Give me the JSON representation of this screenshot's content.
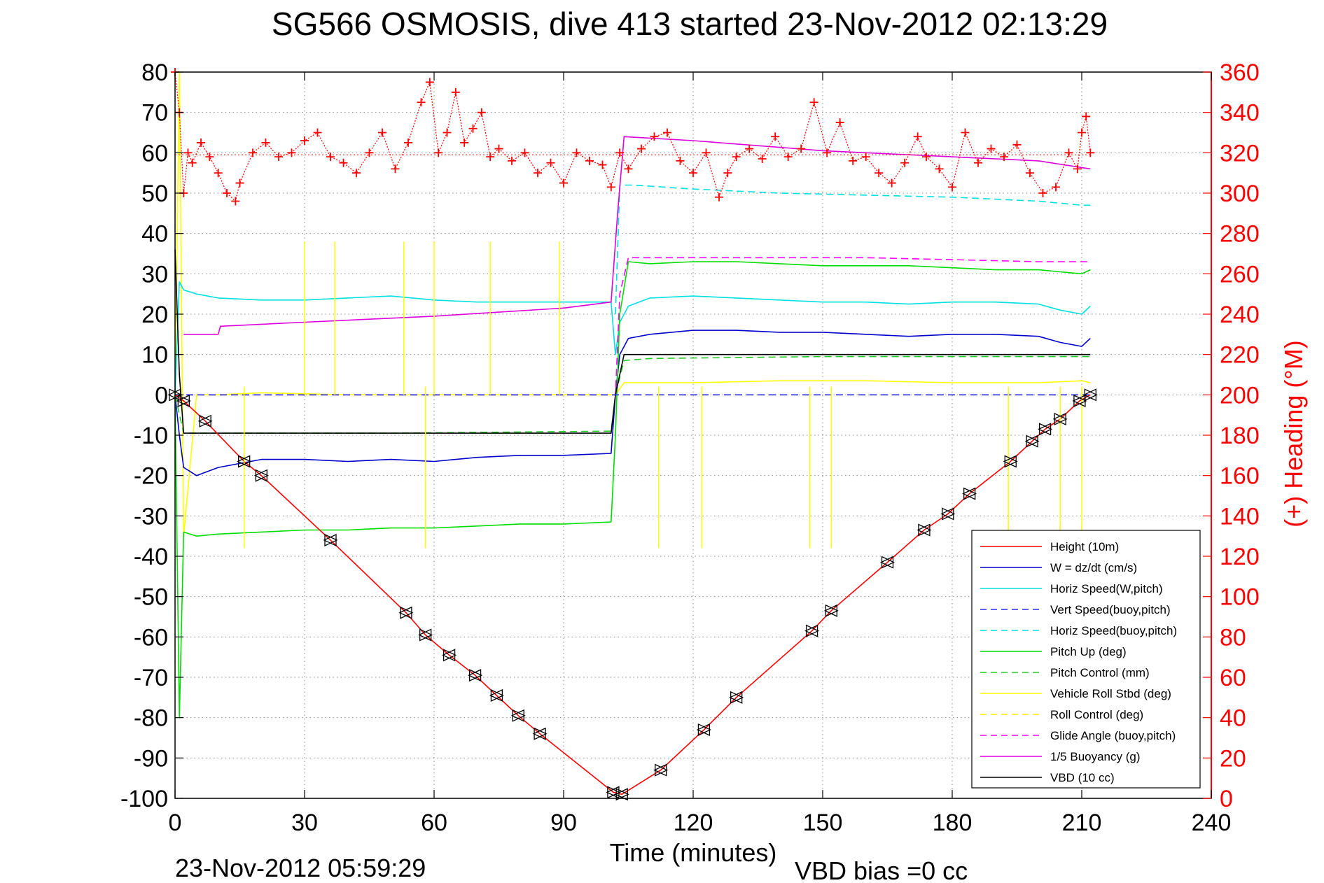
{
  "chart_data": {
    "type": "line",
    "title": "SG566 OSMOSIS, dive 413 started 23-Nov-2012 02:13:29",
    "xlabel": "Time (minutes)",
    "ylabel": "",
    "y2label": "(+) Heading (°M)",
    "xlim": [
      0,
      240
    ],
    "ylim": [
      -100,
      80
    ],
    "y2lim": [
      0,
      360
    ],
    "xticks": [
      "0",
      "30",
      "60",
      "90",
      "120",
      "150",
      "180",
      "210",
      "240"
    ],
    "yticks": [
      "80",
      "70",
      "60",
      "50",
      "40",
      "30",
      "20",
      "10",
      "0",
      "-10",
      "-20",
      "-30",
      "-40",
      "-50",
      "-60",
      "-70",
      "-80",
      "-90",
      "-100"
    ],
    "y2ticks": [
      "360",
      "340",
      "320",
      "300",
      "280",
      "260",
      "240",
      "220",
      "200",
      "180",
      "160",
      "140",
      "120",
      "100",
      "80",
      "60",
      "40",
      "20",
      "0"
    ],
    "grid": true,
    "legend_position": "bottom-right",
    "footer_left": "23-Nov-2012 05:59:29",
    "footer_right": "VBD bias =0 cc",
    "series": [
      {
        "name": "Height (10m)",
        "color": "#ff0000",
        "style": "solid",
        "marker": "triangle",
        "x": [
          0,
          2,
          7,
          16,
          20,
          36,
          53.5,
          58,
          63.5,
          69.5,
          74.5,
          79.5,
          84.5,
          101.5,
          103.5,
          112.5,
          122.5,
          130,
          147.5,
          152,
          165,
          173.5,
          179,
          184,
          193.5,
          198.5,
          201.5,
          205,
          209.5,
          212
        ],
        "y": [
          0,
          -1.5,
          -6.5,
          -16.5,
          -20,
          -36,
          -54,
          -59.5,
          -64.5,
          -69.5,
          -74.5,
          -79.5,
          -84,
          -98.5,
          -99,
          -93,
          -83,
          -75,
          -58.5,
          -53.5,
          -41.5,
          -33.5,
          -29.5,
          -24.5,
          -16.5,
          -11.5,
          -8.5,
          -6,
          -1.5,
          0
        ]
      },
      {
        "name": "W = dz/dt (cm/s)",
        "color": "#0000cc",
        "style": "solid",
        "x": [
          0,
          1,
          2,
          5,
          10,
          20,
          30,
          40,
          50,
          60,
          70,
          80,
          90,
          101,
          102,
          103,
          105,
          110,
          120,
          130,
          140,
          150,
          160,
          170,
          180,
          190,
          200,
          205,
          210,
          212
        ],
        "y": [
          0,
          -10,
          -18,
          -20,
          -18,
          -16,
          -16,
          -16.5,
          -16,
          -16.5,
          -15.5,
          -15,
          -15,
          -14.5,
          0,
          10,
          14,
          15,
          16,
          16,
          15.5,
          15.5,
          15,
          14.5,
          15,
          15,
          14.5,
          13,
          12,
          14
        ]
      },
      {
        "name": "Horiz Speed(W,pitch)",
        "color": "#00e0e0",
        "style": "solid",
        "x": [
          0,
          1,
          2,
          5,
          10,
          20,
          30,
          40,
          50,
          60,
          70,
          80,
          90,
          101,
          102,
          103,
          105,
          110,
          120,
          130,
          140,
          150,
          160,
          170,
          180,
          190,
          200,
          205,
          210,
          212
        ],
        "y": [
          0,
          28,
          26,
          25,
          24,
          23.5,
          23.5,
          24,
          24.5,
          23.5,
          23,
          23,
          23,
          23,
          10,
          18,
          22,
          24,
          24.5,
          24,
          23.5,
          23,
          23,
          22.5,
          23,
          23,
          22.5,
          21,
          20,
          22
        ]
      },
      {
        "name": "Vert Speed(buoy,pitch)",
        "color": "#2a2aff",
        "style": "dashed",
        "x": [
          0,
          2,
          10,
          50,
          100,
          101,
          104,
          110,
          150,
          200,
          212
        ],
        "y": [
          0,
          0,
          0,
          0,
          0,
          0,
          0,
          0,
          0,
          0,
          0
        ]
      },
      {
        "name": "Horiz Speed(buoy,pitch)",
        "color": "#00e0e0",
        "style": "dashed",
        "x": [
          102,
          103,
          106,
          120,
          140,
          160,
          180,
          200,
          210,
          212
        ],
        "y": [
          20,
          52,
          52,
          51,
          50,
          49.5,
          49,
          48,
          47,
          47
        ]
      },
      {
        "name": "Pitch Up (deg)",
        "color": "#00dd00",
        "style": "solid",
        "x": [
          0,
          1,
          2,
          5,
          10,
          20,
          30,
          40,
          50,
          60,
          70,
          80,
          90,
          101,
          102,
          103,
          105,
          110,
          120,
          130,
          140,
          150,
          160,
          170,
          180,
          190,
          200,
          205,
          210,
          212
        ],
        "y": [
          0,
          -80,
          -34,
          -35,
          -34.5,
          -34,
          -33.5,
          -33.5,
          -33,
          -33,
          -32.5,
          -32,
          -32,
          -31.5,
          -10,
          20,
          33,
          32.5,
          33,
          33,
          32.5,
          32,
          32,
          32,
          31.5,
          31,
          31,
          30.5,
          30,
          31
        ]
      },
      {
        "name": "Pitch Control (mm)",
        "color": "#22cc22",
        "style": "dashed",
        "x": [
          0,
          2,
          10,
          50,
          101,
          102,
          104,
          110,
          150,
          200,
          212
        ],
        "y": [
          0,
          -9.5,
          -9.5,
          -9.5,
          -9,
          0,
          8.5,
          9,
          9.5,
          9.5,
          9.5
        ]
      },
      {
        "name": "Vehicle Roll Stbd (deg)",
        "color": "#ffff00",
        "style": "solid",
        "x": [
          0,
          1,
          2,
          5,
          10,
          20,
          40,
          60,
          80,
          100,
          102,
          104,
          120,
          140,
          160,
          180,
          200,
          210,
          212
        ],
        "y": [
          0,
          80,
          -35,
          0,
          0,
          0.5,
          0,
          0,
          0,
          0,
          0,
          3,
          3,
          3.5,
          3.5,
          3,
          3,
          3.5,
          3
        ]
      },
      {
        "name": "Roll Control (deg)",
        "color": "#ffee00",
        "style": "dashed",
        "x": [
          0,
          2,
          10,
          50,
          100,
          102,
          104,
          150,
          212
        ],
        "y": [
          0,
          0,
          0,
          0,
          0,
          0,
          0,
          0,
          0
        ]
      },
      {
        "name": "Glide Angle (buoy,pitch)",
        "color": "#ff00ff",
        "style": "dashed",
        "x": [
          0,
          2,
          10,
          50,
          101,
          102,
          103,
          105,
          120,
          140,
          160,
          180,
          200,
          212
        ],
        "y": [
          0,
          0,
          0,
          0,
          0,
          0,
          25,
          34,
          34,
          34,
          34,
          33.5,
          33,
          33
        ]
      },
      {
        "name": "1/5 Buoyancy (g)",
        "color": "#dd00dd",
        "style": "solid",
        "x": [
          2,
          10,
          10.5,
          30,
          60,
          90,
          101,
          102.5,
          104,
          120,
          150,
          180,
          200,
          212
        ],
        "y": [
          15,
          15,
          17,
          18,
          19.5,
          21.5,
          23,
          45,
          64,
          63,
          60.5,
          59,
          58,
          56
        ]
      },
      {
        "name": "VBD (10 cc)",
        "color": "#000000",
        "style": "solid",
        "x": [
          0,
          1,
          2,
          10,
          50,
          101,
          102,
          104,
          110,
          150,
          200,
          212
        ],
        "y": [
          36,
          5,
          -9.5,
          -9.5,
          -9.5,
          -9.5,
          0,
          10,
          10,
          10,
          10,
          10
        ]
      }
    ],
    "heading": {
      "name": "Heading (°M)",
      "color": "#ff0000",
      "marker": "plus",
      "reference": 319,
      "x": [
        0,
        1,
        2,
        3,
        4,
        6,
        8,
        10,
        12,
        14,
        15,
        18,
        21,
        24,
        27,
        30,
        33,
        36,
        39,
        42,
        45,
        48,
        51,
        54,
        57,
        59,
        61,
        63,
        65,
        67,
        69,
        71,
        73,
        75,
        78,
        81,
        84,
        87,
        90,
        93,
        96,
        99,
        101,
        103,
        105,
        108,
        111,
        114,
        117,
        120,
        123,
        126,
        128,
        130,
        133,
        136,
        139,
        142,
        145,
        148,
        151,
        154,
        157,
        160,
        163,
        166,
        169,
        172,
        174,
        177,
        180,
        183,
        186,
        189,
        192,
        195,
        198,
        201,
        204,
        207,
        209,
        210,
        211,
        212
      ],
      "y": [
        360,
        340,
        300,
        320,
        315,
        325,
        318,
        310,
        300,
        296,
        305,
        320,
        325,
        318,
        320,
        326,
        330,
        318,
        315,
        310,
        320,
        330,
        312,
        325,
        345,
        355,
        320,
        330,
        350,
        325,
        332,
        340,
        318,
        322,
        316,
        320,
        310,
        315,
        305,
        320,
        316,
        314,
        303,
        320,
        312,
        322,
        328,
        330,
        316,
        310,
        320,
        298,
        310,
        318,
        322,
        317,
        328,
        318,
        322,
        345,
        320,
        335,
        316,
        318,
        310,
        305,
        315,
        328,
        318,
        312,
        303,
        330,
        315,
        322,
        318,
        324,
        310,
        300,
        303,
        320,
        312,
        330,
        338,
        320
      ]
    }
  }
}
